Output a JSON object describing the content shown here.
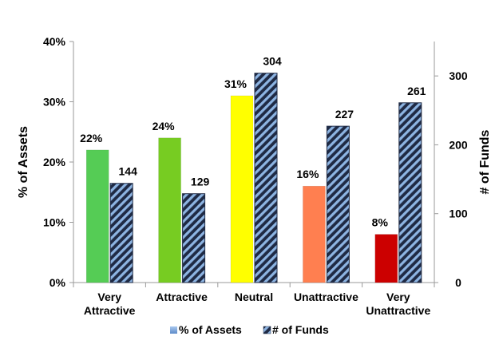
{
  "chart_data": {
    "type": "bar",
    "categories": [
      "Very Attractive",
      "Attractive",
      "Neutral",
      "Unattractive",
      "Very Unattractive"
    ],
    "category_lines": [
      [
        "Very",
        "Attractive"
      ],
      [
        "Attractive"
      ],
      [
        "Neutral"
      ],
      [
        "Unattractive"
      ],
      [
        "Very",
        "Unattractive"
      ]
    ],
    "series": [
      {
        "name": "% of Assets",
        "axis": "left",
        "values": [
          22,
          24,
          31,
          16,
          8
        ],
        "labels": [
          "22%",
          "24%",
          "31%",
          "16%",
          "8%"
        ],
        "colors": [
          "#55CC55",
          "#77CC22",
          "#FFFF00",
          "#FF7F50",
          "#CC0000"
        ],
        "legend_color": "#7FA8DC"
      },
      {
        "name": "# of Funds",
        "axis": "right",
        "values": [
          144,
          129,
          304,
          227,
          261
        ],
        "labels": [
          "144",
          "129",
          "304",
          "227",
          "261"
        ],
        "fill": "#1F2A44",
        "stripe_color": "#8DB4E2"
      }
    ],
    "ylabel": "% of Assets",
    "y2label": "# of Funds",
    "ylim": [
      0,
      40
    ],
    "y2lim": [
      0,
      350
    ],
    "yticks": [
      "0%",
      "10%",
      "20%",
      "30%",
      "40%"
    ],
    "y2ticks": [
      "0",
      "100",
      "200",
      "300"
    ],
    "y2tick_values": [
      0,
      100,
      200,
      300
    ],
    "legend_position": "bottom",
    "grid": false
  }
}
